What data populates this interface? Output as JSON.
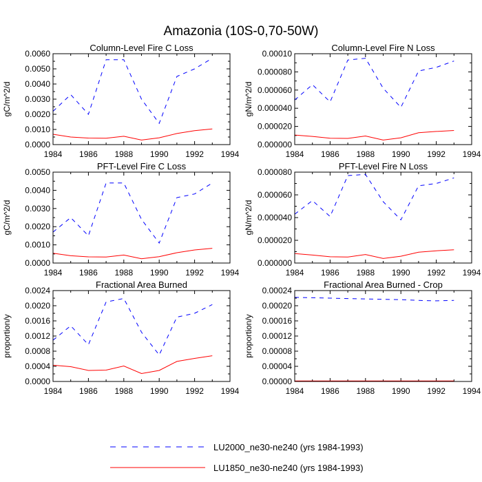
{
  "figure": {
    "title": "Amazonia (10S-0,70-50W)",
    "legend": [
      {
        "label": "LU2000_ne30-ne240 (yrs 1984-1993)",
        "color": "#0000ff",
        "style": "dashed"
      },
      {
        "label": "LU1850_ne30-ne240 (yrs 1984-1993)",
        "color": "#ff0000",
        "style": "solid"
      }
    ]
  },
  "chart_data": [
    {
      "type": "line",
      "title": "Column-Level Fire C Loss",
      "xlabel": "",
      "ylabel": "gC/m^2/d",
      "xlim": [
        1984,
        1994
      ],
      "ylim": [
        0,
        0.006
      ],
      "x_ticks": [
        1984,
        1986,
        1988,
        1990,
        1992,
        1994
      ],
      "x_tick_labels": [
        "1984",
        "1986",
        "1988",
        "1990",
        "1992",
        "1994"
      ],
      "y_ticks": [
        0,
        0.001,
        0.002,
        0.003,
        0.004,
        0.005,
        0.006
      ],
      "y_tick_labels": [
        "0.0000",
        "0.0010",
        "0.0020",
        "0.0030",
        "0.0040",
        "0.0050",
        "0.0060"
      ],
      "x": [
        1984,
        1985,
        1986,
        1987,
        1988,
        1989,
        1990,
        1991,
        1992,
        1993
      ],
      "series": [
        {
          "name": "LU2000_ne30-ne240 (yrs 1984-1993)",
          "color": "#0000ff",
          "style": "dashed",
          "values": [
            0.0022,
            0.0033,
            0.002,
            0.0056,
            0.0056,
            0.003,
            0.0014,
            0.0045,
            0.005,
            0.0057
          ]
        },
        {
          "name": "LU1850_ne30-ne240 (yrs 1984-1993)",
          "color": "#ff0000",
          "style": "solid",
          "values": [
            0.00068,
            0.0005,
            0.00043,
            0.00042,
            0.00055,
            0.0003,
            0.00045,
            0.00073,
            0.00092,
            0.00103
          ]
        }
      ]
    },
    {
      "type": "line",
      "title": "Column-Level Fire N Loss",
      "xlabel": "",
      "ylabel": "gN/m^2/d",
      "xlim": [
        1984,
        1994
      ],
      "ylim": [
        0,
        0.0001
      ],
      "x_ticks": [
        1984,
        1986,
        1988,
        1990,
        1992,
        1994
      ],
      "x_tick_labels": [
        "1984",
        "1986",
        "1988",
        "1990",
        "1992",
        "1994"
      ],
      "y_ticks": [
        0,
        2e-05,
        4e-05,
        6e-05,
        8e-05,
        0.0001
      ],
      "y_tick_labels": [
        "0.000000",
        "0.000020",
        "0.000040",
        "0.000060",
        "0.000080",
        "0.00010"
      ],
      "x": [
        1984,
        1985,
        1986,
        1987,
        1988,
        1989,
        1990,
        1991,
        1992,
        1993
      ],
      "series": [
        {
          "name": "LU2000_ne30-ne240 (yrs 1984-1993)",
          "color": "#0000ff",
          "style": "dashed",
          "values": [
            4.9e-05,
            6.6e-05,
            4.7e-05,
            9.3e-05,
            9.5e-05,
            6.2e-05,
            4.1e-05,
            8.1e-05,
            8.5e-05,
            9.2e-05
          ]
        },
        {
          "name": "LU1850_ne30-ne240 (yrs 1984-1993)",
          "color": "#ff0000",
          "style": "solid",
          "values": [
            1.05e-05,
            9e-06,
            7e-06,
            6.8e-06,
            9.5e-06,
            5e-06,
            7.5e-06,
            1.3e-05,
            1.45e-05,
            1.55e-05
          ]
        }
      ]
    },
    {
      "type": "line",
      "title": "PFT-Level Fire C Loss",
      "xlabel": "",
      "ylabel": "gC/m^2/d",
      "xlim": [
        1984,
        1994
      ],
      "ylim": [
        0,
        0.005
      ],
      "x_ticks": [
        1984,
        1986,
        1988,
        1990,
        1992,
        1994
      ],
      "x_tick_labels": [
        "1984",
        "1986",
        "1988",
        "1990",
        "1992",
        "1994"
      ],
      "y_ticks": [
        0,
        0.001,
        0.002,
        0.003,
        0.004,
        0.005
      ],
      "y_tick_labels": [
        "0.0000",
        "0.0010",
        "0.0020",
        "0.0030",
        "0.0040",
        "0.0050"
      ],
      "x": [
        1984,
        1985,
        1986,
        1987,
        1988,
        1989,
        1990,
        1991,
        1992,
        1993
      ],
      "series": [
        {
          "name": "LU2000_ne30-ne240 (yrs 1984-1993)",
          "color": "#0000ff",
          "style": "dashed",
          "values": [
            0.0017,
            0.0025,
            0.0015,
            0.0044,
            0.0044,
            0.0024,
            0.0011,
            0.0036,
            0.0038,
            0.0044
          ]
        },
        {
          "name": "LU1850_ne30-ne240 (yrs 1984-1993)",
          "color": "#ff0000",
          "style": "solid",
          "values": [
            0.00054,
            0.0004,
            0.00034,
            0.00033,
            0.00044,
            0.00024,
            0.00035,
            0.00057,
            0.00072,
            0.00081
          ]
        }
      ]
    },
    {
      "type": "line",
      "title": "PFT-Level Fire N Loss",
      "xlabel": "",
      "ylabel": "gN/m^2/d",
      "xlim": [
        1984,
        1994
      ],
      "ylim": [
        0,
        8e-05
      ],
      "x_ticks": [
        1984,
        1986,
        1988,
        1990,
        1992,
        1994
      ],
      "x_tick_labels": [
        "1984",
        "1986",
        "1988",
        "1990",
        "1992",
        "1994"
      ],
      "y_ticks": [
        0,
        2e-05,
        4e-05,
        6e-05,
        8e-05
      ],
      "y_tick_labels": [
        "0.000000",
        "0.000020",
        "0.000040",
        "0.000060",
        "0.000080"
      ],
      "x": [
        1984,
        1985,
        1986,
        1987,
        1988,
        1989,
        1990,
        1991,
        1992,
        1993
      ],
      "series": [
        {
          "name": "LU2000_ne30-ne240 (yrs 1984-1993)",
          "color": "#0000ff",
          "style": "dashed",
          "values": [
            4.3e-05,
            5.5e-05,
            4.1e-05,
            7.7e-05,
            7.8e-05,
            5.4e-05,
            3.8e-05,
            6.8e-05,
            7e-05,
            7.5e-05
          ]
        },
        {
          "name": "LU1850_ne30-ne240 (yrs 1984-1993)",
          "color": "#ff0000",
          "style": "solid",
          "values": [
            8.3e-06,
            7e-06,
            5.5e-06,
            5.3e-06,
            7.5e-06,
            4e-06,
            6e-06,
            9.5e-06,
            1.08e-05,
            1.17e-05
          ]
        }
      ]
    },
    {
      "type": "line",
      "title": "Fractional Area Burned",
      "xlabel": "",
      "ylabel": "proportion/y",
      "xlim": [
        1984,
        1994
      ],
      "ylim": [
        0,
        0.0024
      ],
      "x_ticks": [
        1984,
        1986,
        1988,
        1990,
        1992,
        1994
      ],
      "x_tick_labels": [
        "1984",
        "1986",
        "1988",
        "1990",
        "1992",
        "1994"
      ],
      "y_ticks": [
        0,
        0.0004,
        0.0008,
        0.0012,
        0.0016,
        0.002,
        0.0024
      ],
      "y_tick_labels": [
        "0.0000",
        "0.0004",
        "0.0008",
        "0.0012",
        "0.0016",
        "0.0020",
        "0.0024"
      ],
      "x": [
        1984,
        1985,
        1986,
        1987,
        1988,
        1989,
        1990,
        1991,
        1992,
        1993
      ],
      "series": [
        {
          "name": "LU2000_ne30-ne240 (yrs 1984-1993)",
          "color": "#0000ff",
          "style": "dashed",
          "values": [
            0.00109,
            0.00147,
            0.00097,
            0.0021,
            0.00219,
            0.0013,
            0.0007,
            0.0017,
            0.0018,
            0.00203
          ]
        },
        {
          "name": "LU1850_ne30-ne240 (yrs 1984-1993)",
          "color": "#ff0000",
          "style": "solid",
          "values": [
            0.00043,
            0.00039,
            0.00029,
            0.0003,
            0.00041,
            0.00021,
            0.00029,
            0.00053,
            0.00061,
            0.00068
          ]
        }
      ]
    },
    {
      "type": "line",
      "title": "Fractional Area Burned - Crop",
      "xlabel": "",
      "ylabel": "proportion/y",
      "xlim": [
        1984,
        1994
      ],
      "ylim": [
        0,
        0.00024
      ],
      "x_ticks": [
        1984,
        1986,
        1988,
        1990,
        1992,
        1994
      ],
      "x_tick_labels": [
        "1984",
        "1986",
        "1988",
        "1990",
        "1992",
        "1994"
      ],
      "y_ticks": [
        0,
        4e-05,
        8e-05,
        0.00012,
        0.00016,
        0.0002,
        0.00024
      ],
      "y_tick_labels": [
        "0.00000",
        "0.00004",
        "0.00008",
        "0.00012",
        "0.00016",
        "0.00020",
        "0.00024"
      ],
      "x": [
        1984,
        1985,
        1986,
        1987,
        1988,
        1989,
        1990,
        1991,
        1992,
        1993
      ],
      "series": [
        {
          "name": "LU2000_ne30-ne240 (yrs 1984-1993)",
          "color": "#0000ff",
          "style": "dashed",
          "values": [
            0.000222,
            0.000221,
            0.00022,
            0.000219,
            0.000218,
            0.000217,
            0.000216,
            0.000214,
            0.000213,
            0.000214
          ]
        },
        {
          "name": "LU1850_ne30-ne240 (yrs 1984-1993)",
          "color": "#ff0000",
          "style": "solid",
          "values": [
            1.2e-06,
            1.2e-06,
            1.2e-06,
            1.2e-06,
            1.2e-06,
            1.2e-06,
            1.2e-06,
            1.2e-06,
            1.2e-06,
            1.2e-06
          ]
        }
      ]
    }
  ]
}
